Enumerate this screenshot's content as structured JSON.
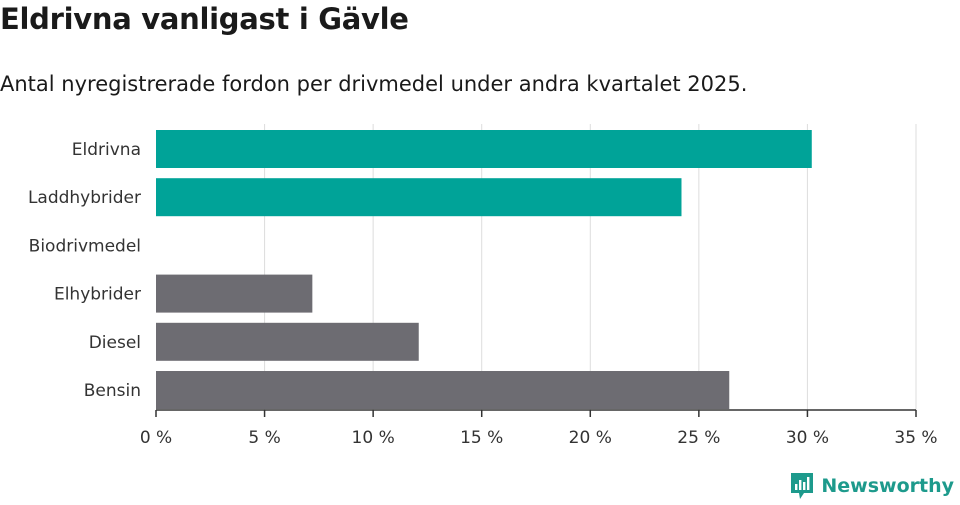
{
  "header": {
    "title": "Eldrivna vanligast i Gävle",
    "subtitle": "Antal nyregistrerade fordon per drivmedel under andra kvartalet 2025."
  },
  "brand": {
    "name": "Newsworthy",
    "icon": "newsworthy-logo-icon"
  },
  "colors": {
    "highlight": "#00a398",
    "default": "#6d6c72",
    "grid": "#dddddd",
    "axis": "#333333"
  },
  "chart_data": {
    "type": "bar",
    "orientation": "horizontal",
    "categories": [
      "Eldrivna",
      "Laddhybrider",
      "Biodrivmedel",
      "Elhybrider",
      "Diesel",
      "Bensin"
    ],
    "values": [
      30.2,
      24.2,
      0,
      7.2,
      12.1,
      26.4
    ],
    "highlighted": [
      true,
      true,
      false,
      false,
      false,
      false
    ],
    "xlim": [
      0,
      35
    ],
    "xticks": [
      0,
      5,
      10,
      15,
      20,
      25,
      30,
      35
    ],
    "tick_labels": [
      "0 %",
      "5 %",
      "10 %",
      "15 %",
      "20 %",
      "25 %",
      "30 %",
      "35 %"
    ],
    "grid": true
  }
}
